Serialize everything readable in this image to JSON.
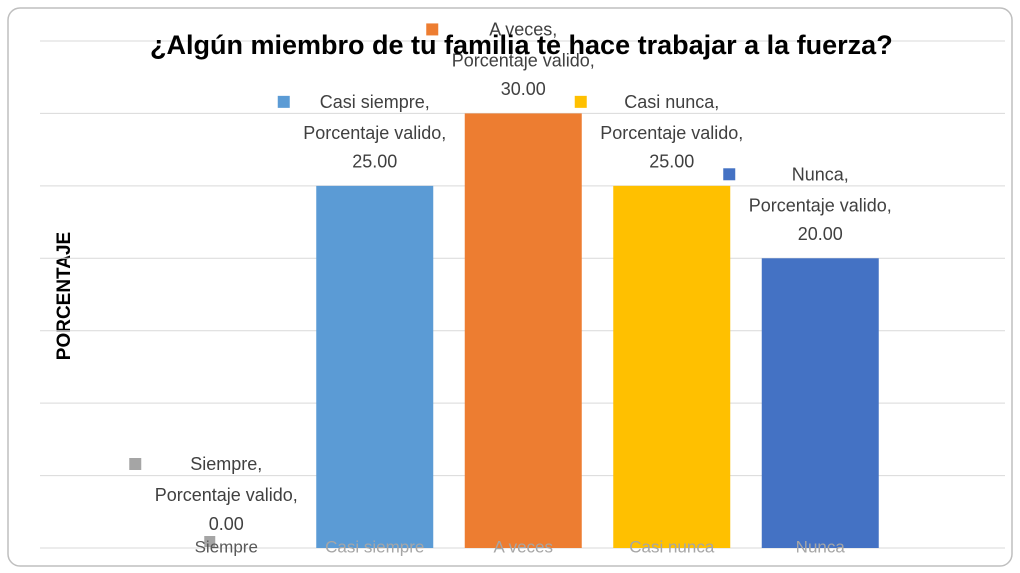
{
  "chart_data": {
    "type": "bar",
    "title": "¿Algún miembro de tu familia te hace trabajar a la fuerza?",
    "y_label": "PORCENTAJE",
    "series_name": "Porcentaje valido",
    "label_separator": ", ",
    "categories": [
      "Siempre",
      "Casi siempre",
      "A veces",
      "Casi nunca",
      "Nunca"
    ],
    "values": [
      0,
      25,
      30,
      25,
      20
    ],
    "value_labels": [
      "0.00",
      "25.00",
      "30.00",
      "25.00",
      "20.00"
    ],
    "colors": [
      "#a5a5a5",
      "#5b9bd5",
      "#ed7d31",
      "#ffc000",
      "#4472c4"
    ],
    "ylim": [
      0,
      35
    ],
    "yticks": [
      0,
      5,
      10,
      15,
      20,
      25,
      30,
      35
    ],
    "grid": true
  }
}
